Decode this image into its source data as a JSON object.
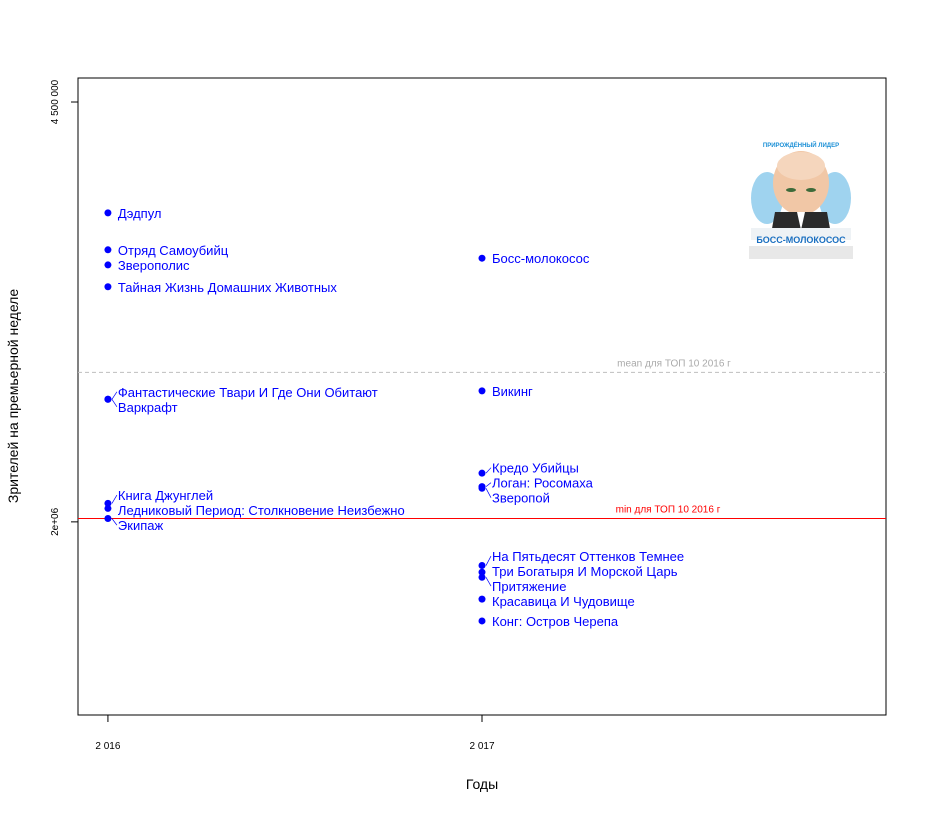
{
  "chart_data": {
    "type": "scatter",
    "title": "",
    "xlabel": "Годы",
    "ylabel": "Зрителей на премьерной неделе",
    "xlim": [
      2015.92,
      2018.08
    ],
    "ylim": [
      850000,
      4643000
    ],
    "x_ticks": [
      {
        "value": 2016,
        "label": "2 016"
      },
      {
        "value": 2017,
        "label": "2 017"
      }
    ],
    "y_ticks": [
      {
        "value": 4500000,
        "label": "4 500 000"
      },
      {
        "value": 2000000,
        "label": "2e+06"
      }
    ],
    "grid": false,
    "point_color": "#0000ff",
    "points": [
      {
        "x": 2016,
        "y": 3840000,
        "label": "Дэдпул"
      },
      {
        "x": 2016,
        "y": 3620000,
        "label": "Отряд Самоубийц"
      },
      {
        "x": 2016,
        "y": 3530000,
        "label": "Зверополис"
      },
      {
        "x": 2016,
        "y": 3400000,
        "label": "Тайная Жизнь Домашних Животных"
      },
      {
        "x": 2016,
        "y": 2730000,
        "label": "Фантастические Твари И Где Они Обитают"
      },
      {
        "x": 2016,
        "y": 2730000,
        "label": "Варкрафт"
      },
      {
        "x": 2016,
        "y": 2110000,
        "label": "Книга Джунглей"
      },
      {
        "x": 2016,
        "y": 2080000,
        "label": "Ледниковый Период: Столкновение Неизбежно"
      },
      {
        "x": 2016,
        "y": 2020000,
        "label": "Экипаж"
      },
      {
        "x": 2017,
        "y": 3570000,
        "label": "Босс-молокосос"
      },
      {
        "x": 2017,
        "y": 2780000,
        "label": "Викинг"
      },
      {
        "x": 2017,
        "y": 2290000,
        "label": "Кредо Убийцы"
      },
      {
        "x": 2017,
        "y": 2210000,
        "label": "Логан: Росомаха"
      },
      {
        "x": 2017,
        "y": 2200000,
        "label": "Зверопой"
      },
      {
        "x": 2017,
        "y": 1740000,
        "label": "На Пятьдесят Оттенков Темнее"
      },
      {
        "x": 2017,
        "y": 1700000,
        "label": "Три Богатыря И Морской Царь"
      },
      {
        "x": 2017,
        "y": 1670000,
        "label": "Притяжение"
      },
      {
        "x": 2017,
        "y": 1540000,
        "label": "Красавица И Чудовище"
      },
      {
        "x": 2017,
        "y": 1410000,
        "label": "Конг: Остров Черепа"
      }
    ],
    "reference_lines": [
      {
        "y": 2890000,
        "label": "mean для ТОП 10 2016 г",
        "color": "#bebebe",
        "style": "dashed"
      },
      {
        "y": 2020000,
        "label": "min для ТОП 10 2016 г",
        "color": "#ff0000",
        "style": "solid"
      }
    ],
    "poster": {
      "tagline": "ПРИРОЖДЁННЫЙ ЛИДЕР",
      "title": "БОСС-МОЛОКОСОС"
    }
  }
}
